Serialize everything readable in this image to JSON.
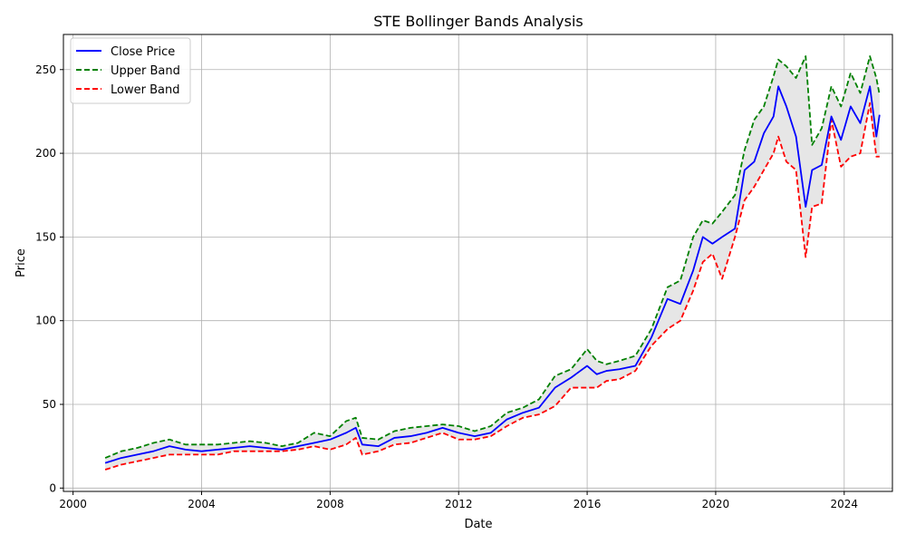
{
  "chart_data": {
    "type": "line",
    "title": "STE Bollinger Bands Analysis",
    "xlabel": "Date",
    "ylabel": "Price",
    "xlim": [
      1999.7,
      2025.5
    ],
    "ylim": [
      -2,
      271
    ],
    "x_ticks": [
      2000,
      2004,
      2008,
      2012,
      2016,
      2020,
      2024
    ],
    "y_ticks": [
      0,
      50,
      100,
      150,
      200,
      250
    ],
    "grid": true,
    "legend_position": "upper-left",
    "band_fill_color": "#e6e6e6",
    "series": [
      {
        "name": "Close Price",
        "color": "#0000ff",
        "style": "solid",
        "x": [
          2001.0,
          2001.5,
          2002.0,
          2002.5,
          2003.0,
          2003.5,
          2004.0,
          2004.5,
          2005.0,
          2005.5,
          2006.0,
          2006.5,
          2007.0,
          2007.5,
          2008.0,
          2008.5,
          2008.8,
          2009.0,
          2009.5,
          2010.0,
          2010.5,
          2011.0,
          2011.5,
          2012.0,
          2012.5,
          2013.0,
          2013.5,
          2014.0,
          2014.5,
          2015.0,
          2015.5,
          2016.0,
          2016.3,
          2016.6,
          2017.0,
          2017.5,
          2018.0,
          2018.5,
          2018.9,
          2019.3,
          2019.6,
          2019.9,
          2020.2,
          2020.6,
          2020.9,
          2021.2,
          2021.5,
          2021.8,
          2021.95,
          2022.2,
          2022.5,
          2022.8,
          2023.0,
          2023.3,
          2023.6,
          2023.9,
          2024.2,
          2024.5,
          2024.8,
          2025.0,
          2025.1
        ],
        "values": [
          15,
          18,
          20,
          22,
          25,
          23,
          22,
          23,
          24,
          25,
          24,
          23,
          25,
          27,
          29,
          33,
          36,
          26,
          25,
          30,
          31,
          33,
          36,
          33,
          31,
          33,
          41,
          45,
          48,
          60,
          66,
          73,
          68,
          70,
          71,
          73,
          90,
          113,
          110,
          130,
          150,
          146,
          150,
          155,
          190,
          195,
          212,
          222,
          240,
          228,
          210,
          168,
          190,
          193,
          222,
          208,
          228,
          218,
          240,
          210,
          223
        ]
      },
      {
        "name": "Upper Band",
        "color": "#008000",
        "style": "dashed",
        "x": [
          2001.0,
          2001.5,
          2002.0,
          2002.5,
          2003.0,
          2003.5,
          2004.0,
          2004.5,
          2005.0,
          2005.5,
          2006.0,
          2006.5,
          2007.0,
          2007.5,
          2008.0,
          2008.5,
          2008.8,
          2009.0,
          2009.5,
          2010.0,
          2010.5,
          2011.0,
          2011.5,
          2012.0,
          2012.5,
          2013.0,
          2013.5,
          2014.0,
          2014.5,
          2015.0,
          2015.5,
          2016.0,
          2016.3,
          2016.6,
          2017.0,
          2017.5,
          2018.0,
          2018.5,
          2018.9,
          2019.3,
          2019.6,
          2019.9,
          2020.2,
          2020.6,
          2020.9,
          2021.2,
          2021.5,
          2021.8,
          2021.95,
          2022.2,
          2022.5,
          2022.8,
          2023.0,
          2023.3,
          2023.6,
          2023.9,
          2024.2,
          2024.5,
          2024.8,
          2025.0,
          2025.1
        ],
        "values": [
          18,
          22,
          24,
          27,
          29,
          26,
          26,
          26,
          27,
          28,
          27,
          25,
          27,
          33,
          31,
          40,
          42,
          30,
          29,
          34,
          36,
          37,
          38,
          37,
          34,
          37,
          45,
          48,
          53,
          67,
          71,
          83,
          76,
          74,
          76,
          79,
          95,
          120,
          124,
          150,
          160,
          158,
          165,
          175,
          202,
          220,
          228,
          246,
          256,
          252,
          245,
          258,
          205,
          215,
          240,
          228,
          248,
          236,
          258,
          245,
          235
        ]
      },
      {
        "name": "Lower Band",
        "color": "#ff0000",
        "style": "dashed",
        "x": [
          2001.0,
          2001.5,
          2002.0,
          2002.5,
          2003.0,
          2003.5,
          2004.0,
          2004.5,
          2005.0,
          2005.5,
          2006.0,
          2006.5,
          2007.0,
          2007.5,
          2008.0,
          2008.5,
          2008.8,
          2009.0,
          2009.5,
          2010.0,
          2010.5,
          2011.0,
          2011.5,
          2012.0,
          2012.5,
          2013.0,
          2013.5,
          2014.0,
          2014.5,
          2015.0,
          2015.5,
          2016.0,
          2016.3,
          2016.6,
          2017.0,
          2017.5,
          2018.0,
          2018.5,
          2018.9,
          2019.3,
          2019.6,
          2019.9,
          2020.2,
          2020.6,
          2020.9,
          2021.2,
          2021.5,
          2021.8,
          2021.95,
          2022.2,
          2022.5,
          2022.8,
          2023.0,
          2023.3,
          2023.6,
          2023.9,
          2024.2,
          2024.5,
          2024.8,
          2025.0,
          2025.1
        ],
        "values": [
          11,
          14,
          16,
          18,
          20,
          20,
          20,
          20,
          22,
          22,
          22,
          22,
          23,
          25,
          23,
          26,
          30,
          20,
          22,
          26,
          27,
          30,
          33,
          29,
          29,
          31,
          37,
          42,
          44,
          49,
          60,
          60,
          60,
          64,
          65,
          70,
          85,
          95,
          100,
          118,
          135,
          140,
          125,
          150,
          172,
          180,
          190,
          200,
          210,
          195,
          190,
          138,
          168,
          170,
          220,
          192,
          198,
          200,
          230,
          198,
          198
        ]
      }
    ]
  }
}
